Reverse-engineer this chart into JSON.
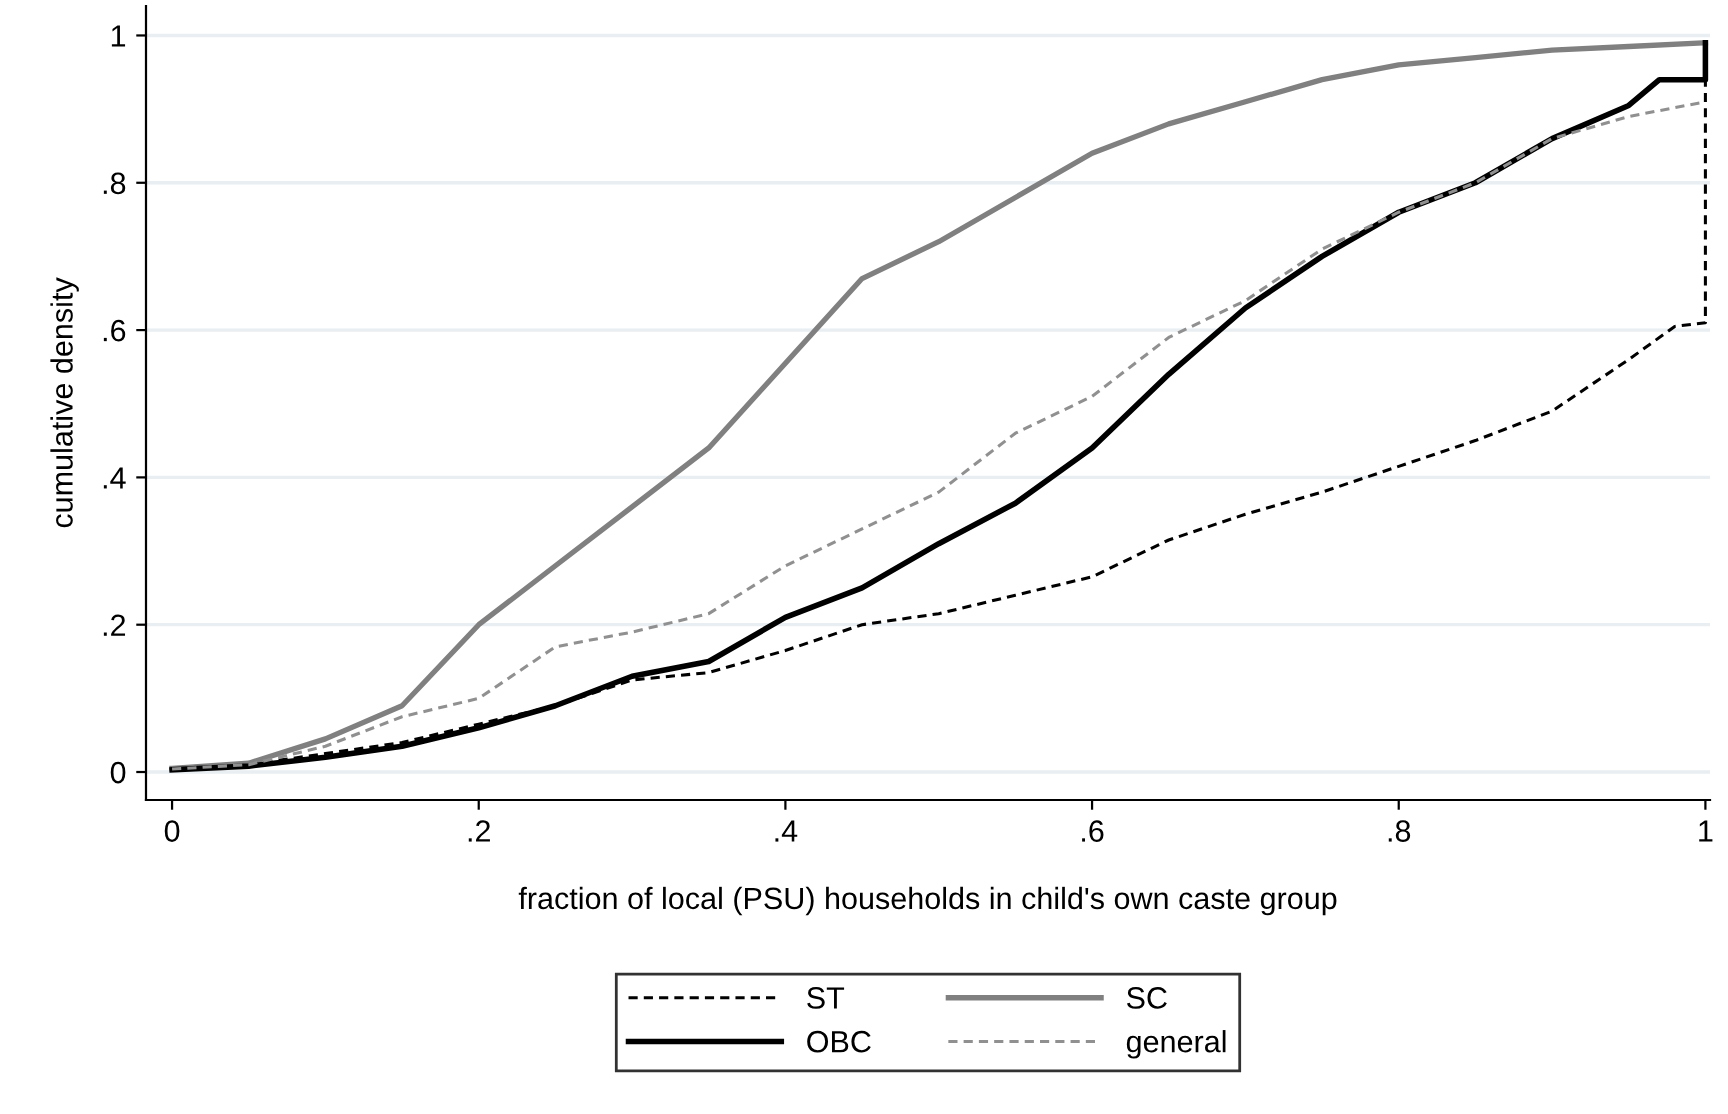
{
  "chart_data": {
    "type": "line",
    "xlabel": "fraction of local (PSU) households in child's own caste group",
    "ylabel": "cumulative density",
    "xlim": [
      -0.017,
      1.003
    ],
    "ylim": [
      -0.038,
      1.04
    ],
    "xticks": [
      0,
      {
        "value": 0.2,
        "label": ".2"
      },
      {
        "value": 0.4,
        "label": ".4"
      },
      {
        "value": 0.6,
        "label": ".6"
      },
      {
        "value": 0.8,
        "label": ".8"
      },
      1
    ],
    "yticks": [
      0,
      {
        "value": 0.2,
        "label": ".2"
      },
      {
        "value": 0.4,
        "label": ".4"
      },
      {
        "value": 0.6,
        "label": ".6"
      },
      {
        "value": 0.8,
        "label": ".8"
      },
      1
    ],
    "grid": "y",
    "legend": "bottom",
    "series": [
      {
        "name": "ST",
        "color": "#000000",
        "line_style": "dashed",
        "x": [
          0,
          0.05,
          0.1,
          0.15,
          0.2,
          0.25,
          0.3,
          0.35,
          0.4,
          0.45,
          0.5,
          0.55,
          0.6,
          0.65,
          0.7,
          0.75,
          0.8,
          0.85,
          0.9,
          0.95,
          0.98,
          1,
          1
        ],
        "values": [
          0.005,
          0.01,
          0.025,
          0.04,
          0.065,
          0.09,
          0.125,
          0.135,
          0.165,
          0.2,
          0.215,
          0.24,
          0.265,
          0.315,
          0.35,
          0.38,
          0.415,
          0.45,
          0.49,
          0.56,
          0.605,
          0.61,
          0.99
        ]
      },
      {
        "name": "SC",
        "color": "#808080",
        "line_style": "solid",
        "x": [
          0,
          0.05,
          0.1,
          0.15,
          0.2,
          0.25,
          0.3,
          0.35,
          0.4,
          0.45,
          0.5,
          0.55,
          0.6,
          0.65,
          0.7,
          0.75,
          0.8,
          0.85,
          0.9,
          0.95,
          1
        ],
        "values": [
          0.005,
          0.012,
          0.045,
          0.09,
          0.2,
          0.28,
          0.36,
          0.44,
          0.555,
          0.67,
          0.72,
          0.78,
          0.84,
          0.88,
          0.91,
          0.94,
          0.96,
          0.97,
          0.98,
          0.985,
          0.99
        ]
      },
      {
        "name": "OBC",
        "color": "#000000",
        "line_style": "solid",
        "x": [
          0,
          0.05,
          0.1,
          0.15,
          0.2,
          0.25,
          0.3,
          0.35,
          0.4,
          0.45,
          0.5,
          0.55,
          0.6,
          0.65,
          0.7,
          0.75,
          0.8,
          0.85,
          0.9,
          0.95,
          0.97,
          1,
          1
        ],
        "values": [
          0.003,
          0.008,
          0.02,
          0.035,
          0.06,
          0.09,
          0.13,
          0.15,
          0.21,
          0.25,
          0.31,
          0.365,
          0.44,
          0.54,
          0.63,
          0.7,
          0.76,
          0.8,
          0.86,
          0.905,
          0.94,
          0.94,
          0.99
        ]
      },
      {
        "name": "general",
        "color": "#909090",
        "line_style": "dashed",
        "x": [
          0,
          0.05,
          0.1,
          0.15,
          0.2,
          0.25,
          0.3,
          0.35,
          0.4,
          0.45,
          0.5,
          0.55,
          0.6,
          0.65,
          0.7,
          0.75,
          0.8,
          0.85,
          0.9,
          0.95,
          1
        ],
        "values": [
          0.004,
          0.01,
          0.035,
          0.075,
          0.1,
          0.17,
          0.19,
          0.215,
          0.28,
          0.33,
          0.38,
          0.46,
          0.51,
          0.59,
          0.64,
          0.71,
          0.76,
          0.8,
          0.86,
          0.89,
          0.91
        ]
      }
    ]
  }
}
